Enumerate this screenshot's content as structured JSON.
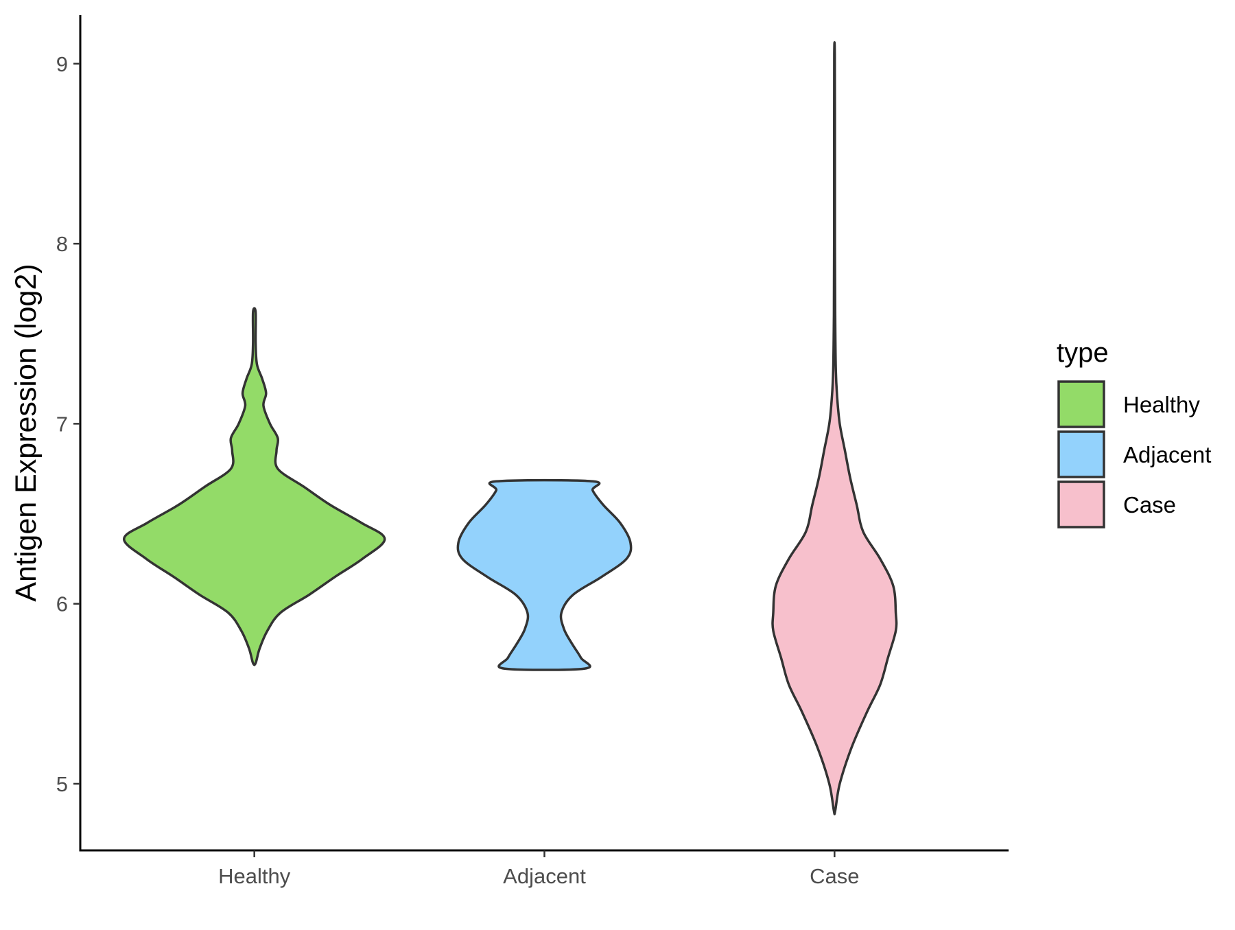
{
  "chart_data": {
    "type": "violin",
    "title": "",
    "xlabel": "",
    "ylabel": "Antigen Expression (log2)",
    "ylim": [
      4.63,
      9.27
    ],
    "yticks": [
      5,
      6,
      7,
      8,
      9
    ],
    "grid": false,
    "categories": [
      "Healthy",
      "Adjacent",
      "Case"
    ],
    "series": [
      {
        "name": "Healthy",
        "color": "#93DB68",
        "min": 5.67,
        "max": 7.62,
        "density": [
          [
            5.67,
            0.01
          ],
          [
            5.75,
            0.04
          ],
          [
            5.85,
            0.1
          ],
          [
            5.95,
            0.2
          ],
          [
            6.05,
            0.42
          ],
          [
            6.15,
            0.62
          ],
          [
            6.25,
            0.83
          ],
          [
            6.36,
            1.0
          ],
          [
            6.45,
            0.82
          ],
          [
            6.55,
            0.58
          ],
          [
            6.65,
            0.38
          ],
          [
            6.75,
            0.18
          ],
          [
            6.85,
            0.17
          ],
          [
            6.92,
            0.18
          ],
          [
            7.0,
            0.12
          ],
          [
            7.1,
            0.07
          ],
          [
            7.17,
            0.09
          ],
          [
            7.25,
            0.06
          ],
          [
            7.33,
            0.02
          ],
          [
            7.45,
            0.01
          ],
          [
            7.62,
            0.01
          ]
        ]
      },
      {
        "name": "Adjacent",
        "color": "#93D2FC",
        "min": 5.64,
        "max": 6.68,
        "density": [
          [
            5.64,
            0.31
          ],
          [
            5.7,
            0.28
          ],
          [
            5.78,
            0.21
          ],
          [
            5.86,
            0.15
          ],
          [
            5.95,
            0.13
          ],
          [
            6.05,
            0.22
          ],
          [
            6.15,
            0.44
          ],
          [
            6.25,
            0.63
          ],
          [
            6.34,
            0.66
          ],
          [
            6.45,
            0.58
          ],
          [
            6.55,
            0.45
          ],
          [
            6.63,
            0.37
          ],
          [
            6.68,
            0.37
          ]
        ]
      },
      {
        "name": "Case",
        "color": "#F7C0CC",
        "min": 4.85,
        "max": 9.05,
        "density": [
          [
            4.85,
            0.005
          ],
          [
            5.0,
            0.04
          ],
          [
            5.2,
            0.13
          ],
          [
            5.4,
            0.25
          ],
          [
            5.55,
            0.35
          ],
          [
            5.7,
            0.41
          ],
          [
            5.85,
            0.47
          ],
          [
            5.95,
            0.47
          ],
          [
            6.1,
            0.45
          ],
          [
            6.25,
            0.35
          ],
          [
            6.4,
            0.22
          ],
          [
            6.55,
            0.17
          ],
          [
            6.7,
            0.12
          ],
          [
            6.85,
            0.08
          ],
          [
            7.0,
            0.04
          ],
          [
            7.15,
            0.02
          ],
          [
            7.3,
            0.01
          ],
          [
            7.6,
            0.005
          ],
          [
            8.0,
            0.003
          ],
          [
            8.5,
            0.003
          ],
          [
            9.05,
            0.002
          ]
        ]
      }
    ],
    "legend": {
      "title": "type",
      "position": "right",
      "entries": [
        "Healthy",
        "Adjacent",
        "Case"
      ]
    }
  }
}
